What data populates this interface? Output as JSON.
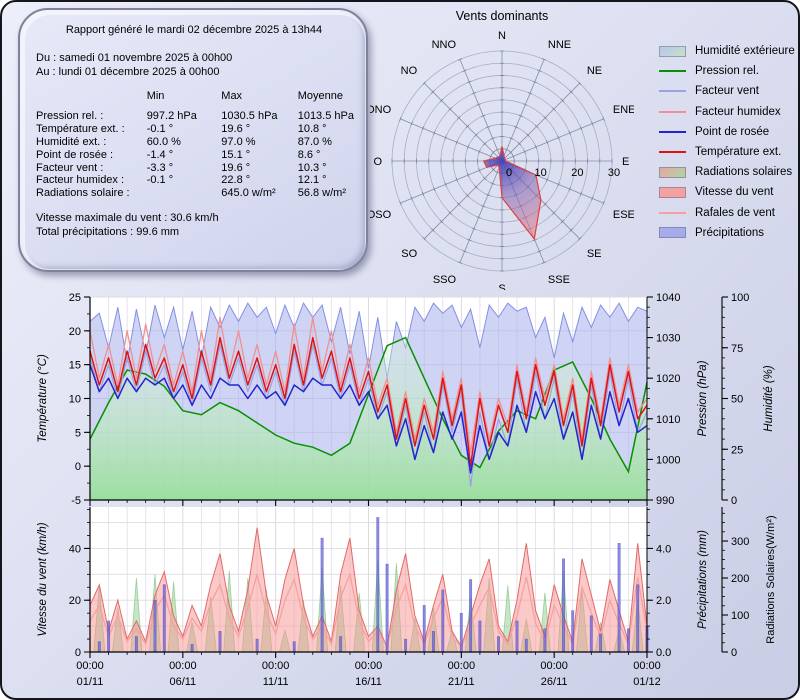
{
  "report": {
    "title": "Rapport généré le mardi 02 décembre 2025 à 13h44",
    "from": "Du : samedi 01 novembre 2025 à 00h00",
    "to": "Au : lundi 01 décembre 2025 à 00h00",
    "table": {
      "headers": [
        "Min",
        "Max",
        "Moyenne"
      ],
      "rows": [
        {
          "label": "Pression rel. :",
          "min": "997.2 hPa",
          "max": "1030.5 hPa",
          "avg": "1013.5 hPa"
        },
        {
          "label": "Température ext. :",
          "min": "-0.1 °",
          "max": "19.6 °",
          "avg": "10.8 °"
        },
        {
          "label": "Humidité ext. :",
          "min": "60.0 %",
          "max": "97.0 %",
          "avg": "87.0 %"
        },
        {
          "label": "Point de rosée :",
          "min": "-1.4 °",
          "max": "15.1 °",
          "avg": "8.6 °"
        },
        {
          "label": "Facteur vent :",
          "min": "-3.3 °",
          "max": "19.6 °",
          "avg": "10.3 °"
        },
        {
          "label": "Facteur humidex :",
          "min": "-0.1 °",
          "max": "22.8 °",
          "avg": "12.1 °"
        },
        {
          "label": "Radiations solaire :",
          "min": "",
          "max": "645.0 w/m²",
          "avg": "56.8 w/m²"
        }
      ]
    },
    "wind_max": "Vitesse maximale du vent : 30.6 km/h",
    "precip_total": "Total précipitations : 99.6 mm"
  },
  "legend": {
    "items": [
      {
        "label": "Humidité extérieure",
        "swatch": "area",
        "color1": "#bcc4ec",
        "color2": "#c2e2c6"
      },
      {
        "label": "Pression rel.",
        "swatch": "line",
        "color1": "#089000",
        "color2": "#089000"
      },
      {
        "label": "Facteur vent",
        "swatch": "line",
        "color1": "#9aa2e0",
        "color2": "#9aa2e0"
      },
      {
        "label": "Facteur humidex",
        "swatch": "line",
        "color1": "#f09090",
        "color2": "#f09090"
      },
      {
        "label": "Point de rosée",
        "swatch": "line",
        "color1": "#2424cc",
        "color2": "#2424cc"
      },
      {
        "label": "Température ext.",
        "swatch": "line",
        "color1": "#e01212",
        "color2": "#e01212"
      },
      {
        "label": "Radiations solaires",
        "swatch": "area",
        "color1": "#eca4a4",
        "color2": "#a8d8a8"
      },
      {
        "label": "Vitesse du vent",
        "swatch": "area",
        "color1": "#f4a4a4",
        "color2": "#f2a0a0"
      },
      {
        "label": "Rafales de vent",
        "swatch": "line",
        "color1": "#f4a0a0",
        "color2": "#f4a0a0"
      },
      {
        "label": "Précipitations",
        "swatch": "area",
        "color1": "#a8aeea",
        "color2": "#a4aae8"
      }
    ]
  },
  "chart_data": [
    {
      "type": "windrose",
      "title": "Vents dominants",
      "directions": [
        "N",
        "NNE",
        "NE",
        "ENE",
        "E",
        "ESE",
        "SE",
        "SSE",
        "S",
        "SSO",
        "SO",
        "OSO",
        "O",
        "ONO",
        "NO",
        "NNO"
      ],
      "values_pct": [
        4,
        1.5,
        1,
        1,
        1,
        10,
        15,
        23,
        10,
        2,
        1.5,
        4.5,
        5,
        2,
        1.5,
        1.5
      ],
      "r_max": 30,
      "r_ticks": [
        0,
        10,
        20,
        30
      ],
      "rings": 9
    },
    {
      "type": "area",
      "x_start_day": 0,
      "x_end_day": 30,
      "axes": {
        "left": {
          "label": "Température (°C)",
          "min": -5,
          "max": 25,
          "ticks": [
            -5,
            0,
            5,
            10,
            15,
            20,
            25
          ]
        },
        "right1": {
          "label": "Pression (hPa)",
          "min": 990,
          "max": 1040,
          "ticks": [
            990,
            1000,
            1010,
            1020,
            1030,
            1040
          ]
        },
        "right2": {
          "label": "Humidité (%)",
          "min": 0,
          "max": 100,
          "ticks": [
            0,
            25,
            50,
            75,
            100
          ]
        }
      },
      "series": [
        {
          "key": "humidity",
          "name": "Humidité extérieure",
          "axis": "right2",
          "style": "area",
          "color": "#8c9ae4",
          "x_step_days": 0.5,
          "values": [
            88,
            92,
            75,
            95,
            68,
            94,
            72,
            96,
            80,
            95,
            74,
            93,
            70,
            95,
            85,
            96,
            88,
            97,
            90,
            95,
            82,
            96,
            85,
            97,
            90,
            96,
            78,
            95,
            72,
            93,
            65,
            90,
            60,
            88,
            75,
            95,
            88,
            97,
            92,
            96,
            85,
            94,
            75,
            96,
            90,
            97,
            93,
            95,
            80,
            90,
            70,
            92,
            78,
            95,
            85,
            96,
            90,
            97,
            88,
            95,
            93
          ]
        },
        {
          "key": "pressure",
          "name": "Pression rel.",
          "axis": "right1",
          "style": "area-line",
          "color": "#089000",
          "x_step_days": 1,
          "values": [
            1005,
            1014,
            1022,
            1021,
            1018,
            1012,
            1011,
            1014,
            1012,
            1009,
            1006,
            1004,
            1003,
            1001,
            1004,
            1016,
            1028,
            1030,
            1020,
            1010,
            1001,
            998,
            1007,
            1012,
            1010,
            1022,
            1024,
            1015,
            1005,
            997,
            1019
          ]
        },
        {
          "key": "fvent",
          "name": "Facteur vent",
          "axis": "left",
          "style": "line",
          "color": "#9aa2e0",
          "x_step_days": 0.5,
          "values": [
            16,
            11,
            15,
            10,
            16,
            11,
            17,
            12,
            15,
            10,
            14,
            9,
            16,
            11,
            18,
            12,
            16,
            11,
            15,
            10,
            14,
            9,
            17,
            11,
            18,
            12,
            16,
            10,
            15,
            9,
            13,
            7,
            11,
            3,
            9,
            1,
            8,
            2,
            12,
            5,
            11,
            -3,
            8,
            1,
            7,
            3,
            13,
            5,
            14,
            7,
            13,
            4,
            11,
            1,
            12,
            4,
            14,
            6,
            13,
            5,
            8
          ]
        },
        {
          "key": "humidex",
          "name": "Facteur humidex",
          "axis": "left",
          "style": "line",
          "color": "#f09090",
          "x_step_days": 0.5,
          "values": [
            20,
            13,
            18,
            12,
            20,
            13,
            21,
            14,
            18,
            12,
            17,
            11,
            20,
            13,
            22,
            14,
            20,
            13,
            18,
            12,
            17,
            11,
            21,
            13,
            22,
            14,
            20,
            12,
            18,
            11,
            16,
            9,
            13,
            5,
            11,
            4,
            10,
            5,
            14,
            7,
            13,
            2,
            11,
            4,
            10,
            6,
            15,
            8,
            16,
            10,
            15,
            7,
            13,
            4,
            14,
            7,
            16,
            9,
            15,
            8,
            10
          ]
        },
        {
          "key": "temp",
          "name": "Température ext.",
          "axis": "left",
          "style": "line",
          "color": "#e01212",
          "x_step_days": 0.5,
          "values": [
            17,
            12,
            16,
            11,
            17,
            12,
            18,
            13,
            16,
            11,
            15,
            10,
            17,
            12,
            19,
            13,
            17,
            12,
            16,
            11,
            15,
            10,
            18,
            12,
            19,
            13,
            17,
            11,
            16,
            10,
            14,
            8,
            12,
            4,
            10,
            3,
            9,
            4,
            13,
            6,
            12,
            0,
            10,
            3,
            9,
            5,
            14,
            7,
            15,
            9,
            14,
            6,
            12,
            3,
            13,
            6,
            15,
            8,
            14,
            7,
            9
          ]
        },
        {
          "key": "dew",
          "name": "Point de rosée",
          "axis": "left",
          "style": "line",
          "color": "#2424cc",
          "x_step_days": 0.5,
          "values": [
            15,
            11,
            13,
            10,
            13,
            11,
            13,
            12,
            13,
            10,
            12,
            9,
            12,
            10,
            13,
            12,
            12,
            10,
            12,
            10,
            11,
            9,
            12,
            11,
            13,
            12,
            12,
            10,
            12,
            9,
            11,
            7,
            9,
            3,
            7,
            1,
            6,
            2,
            8,
            4,
            8,
            -1,
            6,
            1,
            5,
            3,
            9,
            5,
            11,
            7,
            10,
            4,
            8,
            1,
            9,
            4,
            11,
            6,
            10,
            5,
            6
          ]
        }
      ]
    },
    {
      "type": "mixed",
      "x_start_day": 0,
      "x_end_day": 30,
      "axes": {
        "left": {
          "label": "Vitesse du vent (km/h)",
          "min": 0,
          "max": 56,
          "ticks": [
            0,
            20,
            40
          ]
        },
        "right1": {
          "label": "Précipitations (mm)",
          "min": 0,
          "max": 5.6,
          "ticks": [
            0,
            2,
            4
          ],
          "tick_labels": [
            "0.0",
            "2.0",
            "4.0"
          ]
        },
        "right2": {
          "label": "Radiations Solaires(W/m²)",
          "min": 0,
          "max": 392,
          "ticks": [
            0,
            100,
            200,
            300
          ]
        }
      },
      "series": [
        {
          "key": "radiation",
          "name": "Radiations solaires",
          "axis": "right2",
          "style": "spikes",
          "color": "#96d496",
          "x_step_days": 1,
          "values": [
            180,
            120,
            200,
            210,
            190,
            80,
            150,
            220,
            200,
            170,
            60,
            140,
            230,
            180,
            160,
            250,
            240,
            90,
            120,
            60,
            150,
            200,
            180,
            90,
            160,
            220,
            170,
            80,
            60,
            140
          ]
        },
        {
          "key": "wind",
          "name": "Vitesse du vent",
          "axis": "left",
          "style": "area",
          "color": "#f49494",
          "x_step_days": 0.5,
          "values": [
            18,
            26,
            8,
            20,
            5,
            12,
            4,
            22,
            31,
            14,
            6,
            18,
            10,
            26,
            38,
            18,
            8,
            24,
            48,
            22,
            10,
            28,
            40,
            18,
            6,
            14,
            4,
            30,
            44,
            16,
            6,
            10,
            2,
            24,
            38,
            14,
            4,
            18,
            30,
            8,
            2,
            14,
            26,
            36,
            10,
            4,
            20,
            42,
            16,
            6,
            26,
            14,
            4,
            36,
            22,
            8,
            28,
            16,
            4,
            42,
            10
          ]
        },
        {
          "key": "gusts",
          "name": "Rafales de vent",
          "axis": "left",
          "style": "line",
          "color": "#f4a2a2",
          "x_step_days": 0.5,
          "values": [
            12,
            18,
            6,
            14,
            4,
            9,
            3,
            16,
            22,
            10,
            5,
            13,
            8,
            19,
            26,
            13,
            6,
            17,
            30,
            15,
            7,
            20,
            28,
            13,
            5,
            10,
            3,
            21,
            30,
            12,
            4,
            8,
            2,
            17,
            26,
            10,
            3,
            13,
            21,
            6,
            2,
            10,
            18,
            25,
            8,
            3,
            14,
            29,
            11,
            4,
            18,
            10,
            3,
            25,
            15,
            6,
            20,
            11,
            3,
            29,
            8
          ]
        },
        {
          "key": "precip",
          "name": "Précipitations",
          "axis": "right1",
          "style": "bars",
          "color": "#6060d8",
          "x_step_days": 0.5,
          "values": [
            0,
            0.4,
            1.2,
            0,
            0,
            0.6,
            0,
            2.0,
            2.6,
            0,
            0,
            0.3,
            0,
            0,
            0.8,
            0,
            0,
            0,
            0.5,
            0,
            0,
            0,
            0.4,
            0,
            0,
            4.4,
            0,
            0.6,
            0,
            0,
            0,
            5.2,
            3.4,
            0,
            0.5,
            0,
            1.8,
            0.8,
            2.4,
            0,
            1.5,
            2.8,
            1.2,
            0,
            0.6,
            0,
            1.2,
            0.5,
            0,
            0.9,
            0,
            3.6,
            1.6,
            0,
            1.4,
            0.7,
            0,
            4.2,
            0.9,
            2.6,
            1.0
          ]
        }
      ],
      "xticks": [
        {
          "day": 0,
          "time": "00:00",
          "date": "01/11"
        },
        {
          "day": 5,
          "time": "00:00",
          "date": "06/11"
        },
        {
          "day": 10,
          "time": "00:00",
          "date": "11/11"
        },
        {
          "day": 15,
          "time": "00:00",
          "date": "16/11"
        },
        {
          "day": 20,
          "time": "00:00",
          "date": "21/11"
        },
        {
          "day": 25,
          "time": "00:00",
          "date": "26/11"
        },
        {
          "day": 30,
          "time": "00:00",
          "date": "01/12"
        }
      ]
    }
  ]
}
